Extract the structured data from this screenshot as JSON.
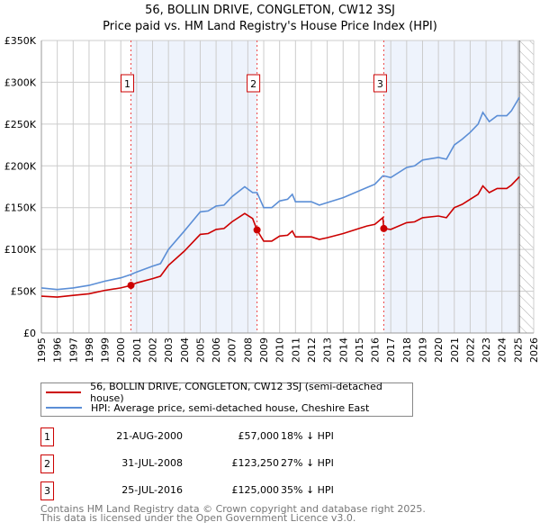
{
  "title": "56, BOLLIN DRIVE, CONGLETON, CW12 3SJ",
  "subtitle": "Price paid vs. HM Land Registry's House Price Index (HPI)",
  "chart_data": {
    "type": "line",
    "title": "56, BOLLIN DRIVE, CONGLETON, CW12 3SJ",
    "subtitle": "Price paid vs. HM Land Registry's House Price Index (HPI)",
    "xlim": [
      1995,
      2026
    ],
    "ylim": [
      0,
      350000
    ],
    "yticks": [
      {
        "v": 0,
        "label": "£0"
      },
      {
        "v": 50000,
        "label": "£50K"
      },
      {
        "v": 100000,
        "label": "£100K"
      },
      {
        "v": 150000,
        "label": "£150K"
      },
      {
        "v": 200000,
        "label": "£200K"
      },
      {
        "v": 250000,
        "label": "£250K"
      },
      {
        "v": 300000,
        "label": "£300K"
      },
      {
        "v": 350000,
        "label": "£350K"
      }
    ],
    "xticks": [
      "1995",
      "1996",
      "1997",
      "1998",
      "1999",
      "2000",
      "2001",
      "2002",
      "2003",
      "2004",
      "2005",
      "2006",
      "2007",
      "2008",
      "2009",
      "2010",
      "2011",
      "2012",
      "2013",
      "2014",
      "2015",
      "2016",
      "2017",
      "2018",
      "2019",
      "2020",
      "2021",
      "2022",
      "2023",
      "2024",
      "2025",
      "2026"
    ],
    "grid": true,
    "forecast_start": 2025.1,
    "shaded_ranges": [
      [
        2000.64,
        2008.58
      ],
      [
        2016.56,
        2025.1
      ]
    ],
    "series": [
      {
        "name": "56, BOLLIN DRIVE, CONGLETON, CW12 3SJ (semi-detached house)",
        "color": "#cc0000",
        "x": [
          1995,
          1996,
          1997,
          1998,
          1999,
          2000,
          2000.64,
          2001,
          2002,
          2002.5,
          2003,
          2004,
          2005,
          2005.5,
          2006,
          2006.5,
          2007,
          2007.8,
          2008.3,
          2008.58,
          2009,
          2009.5,
          2010,
          2010.5,
          2010.8,
          2011,
          2012,
          2012.5,
          2013,
          2014,
          2015,
          2015.5,
          2016,
          2016.5,
          2016.56,
          2017,
          2018,
          2018.5,
          2019,
          2020,
          2020.5,
          2021,
          2021.5,
          2022,
          2022.5,
          2022.8,
          2023.2,
          2023.7,
          2024.3,
          2024.6,
          2025.1
        ],
        "y": [
          44000,
          43000,
          45000,
          47000,
          51000,
          54000,
          57000,
          60000,
          65000,
          68000,
          81000,
          98000,
          118000,
          119000,
          124000,
          125000,
          133000,
          143000,
          137000,
          123250,
          110000,
          110000,
          116000,
          117000,
          122000,
          115000,
          115000,
          112000,
          114000,
          119000,
          125000,
          128000,
          130000,
          138000,
          125000,
          124000,
          132000,
          133000,
          138000,
          140000,
          138000,
          150000,
          154000,
          160000,
          166000,
          176000,
          168000,
          173000,
          173000,
          177000,
          187000
        ]
      },
      {
        "name": "HPI: Average price, semi-detached house, Cheshire East",
        "color": "#5b8ed6",
        "x": [
          1995,
          1996,
          1997,
          1998,
          1999,
          2000,
          2000.64,
          2001,
          2002,
          2002.5,
          2003,
          2004,
          2005,
          2005.5,
          2006,
          2006.5,
          2007,
          2007.8,
          2008.3,
          2008.58,
          2009,
          2009.5,
          2010,
          2010.5,
          2010.8,
          2011,
          2012,
          2012.5,
          2013,
          2014,
          2015,
          2015.5,
          2016,
          2016.5,
          2016.56,
          2017,
          2018,
          2018.5,
          2019,
          2020,
          2020.5,
          2021,
          2021.5,
          2022,
          2022.5,
          2022.8,
          2023.2,
          2023.7,
          2024.3,
          2024.6,
          2025.1
        ],
        "y": [
          54000,
          52000,
          54000,
          57000,
          62000,
          66000,
          70000,
          73000,
          80000,
          83000,
          100000,
          122000,
          145000,
          146000,
          152000,
          153000,
          163000,
          175000,
          168000,
          168000,
          150000,
          150000,
          158000,
          160000,
          166000,
          157000,
          157000,
          153000,
          156000,
          162000,
          170000,
          174000,
          178000,
          188000,
          188000,
          186000,
          198000,
          200000,
          207000,
          210000,
          208000,
          225000,
          232000,
          240000,
          250000,
          264000,
          253000,
          260000,
          260000,
          266000,
          282000
        ]
      }
    ],
    "sales": [
      {
        "label": "1",
        "x": 2000.64,
        "y": 57000
      },
      {
        "label": "2",
        "x": 2008.58,
        "y": 123250
      },
      {
        "label": "3",
        "x": 2016.56,
        "y": 125000
      }
    ]
  },
  "legend": [
    {
      "label": "56, BOLLIN DRIVE, CONGLETON, CW12 3SJ (semi-detached house)",
      "color": "#cc0000"
    },
    {
      "label": "HPI: Average price, semi-detached house, Cheshire East",
      "color": "#5b8ed6"
    }
  ],
  "transactions": [
    {
      "num": "1",
      "date": "21-AUG-2000",
      "price": "£57,000",
      "pct": "18% ↓ HPI"
    },
    {
      "num": "2",
      "date": "31-JUL-2008",
      "price": "£123,250",
      "pct": "27% ↓ HPI"
    },
    {
      "num": "3",
      "date": "25-JUL-2016",
      "price": "£125,000",
      "pct": "35% ↓ HPI"
    }
  ],
  "footer": [
    "Contains HM Land Registry data © Crown copyright and database right 2025.",
    "This data is licensed under the Open Government Licence v3.0."
  ]
}
